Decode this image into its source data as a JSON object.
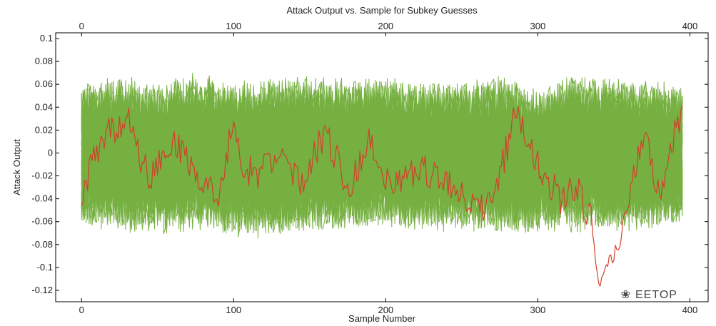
{
  "chart_data": {
    "type": "line",
    "title": "Attack Output vs. Sample for Subkey Guesses",
    "xlabel": "Sample Number",
    "ylabel": "Attack Output",
    "xlim": [
      -17,
      412
    ],
    "ylim": [
      -0.13,
      0.105
    ],
    "x_ticks": [
      0,
      100,
      200,
      300,
      400
    ],
    "x_tick_labels": [
      "0",
      "100",
      "200",
      "300",
      "400"
    ],
    "y_ticks": [
      0.1,
      0.08,
      0.06,
      0.04,
      0.02,
      0,
      -0.02,
      -0.04,
      -0.06,
      -0.08,
      -0.1,
      -0.12
    ],
    "y_tick_labels": [
      "0.1",
      "0.08",
      "0.06",
      "0.04",
      "0.02",
      "0",
      "-0.02",
      "-0.04",
      "-0.06",
      "-0.08",
      "-0.1",
      "-0.12"
    ],
    "top_axis_mirrors_x": true,
    "grid": false,
    "legend": "none",
    "colors": {
      "wrong_guesses": "#76b041",
      "correct_guess": "#d2402a"
    },
    "series": [
      {
        "role": "wrong_guesses_band",
        "color": "#76b041",
        "x": [
          0,
          25,
          50,
          75,
          100,
          125,
          150,
          175,
          200,
          225,
          250,
          275,
          300,
          325,
          350,
          375,
          395
        ],
        "upper": [
          0.062,
          0.07,
          0.062,
          0.072,
          0.065,
          0.066,
          0.07,
          0.065,
          0.068,
          0.064,
          0.062,
          0.07,
          0.058,
          0.07,
          0.068,
          0.064,
          0.062
        ],
        "lower": [
          -0.065,
          -0.07,
          -0.072,
          -0.068,
          -0.075,
          -0.075,
          -0.07,
          -0.068,
          -0.068,
          -0.07,
          -0.068,
          -0.072,
          -0.07,
          -0.07,
          -0.07,
          -0.068,
          -0.065
        ]
      },
      {
        "role": "correct_guess",
        "color": "#d2402a",
        "x": [
          0,
          15,
          30,
          45,
          60,
          75,
          90,
          100,
          105,
          115,
          130,
          145,
          160,
          175,
          190,
          200,
          210,
          225,
          240,
          255,
          270,
          285,
          300,
          315,
          325,
          335,
          340,
          345,
          350,
          360,
          370,
          380,
          390,
          395
        ],
        "y": [
          -0.035,
          0.015,
          0.03,
          -0.025,
          0.01,
          -0.02,
          -0.04,
          0.03,
          -0.01,
          -0.02,
          0.0,
          -0.03,
          0.02,
          -0.03,
          0.01,
          -0.02,
          -0.025,
          -0.015,
          -0.025,
          -0.04,
          -0.05,
          0.035,
          -0.01,
          -0.04,
          -0.03,
          -0.06,
          -0.115,
          -0.1,
          -0.09,
          -0.04,
          0.02,
          -0.035,
          0.02,
          0.03
        ]
      }
    ]
  },
  "watermark": {
    "glyph": "❀",
    "text": "EETOP"
  }
}
